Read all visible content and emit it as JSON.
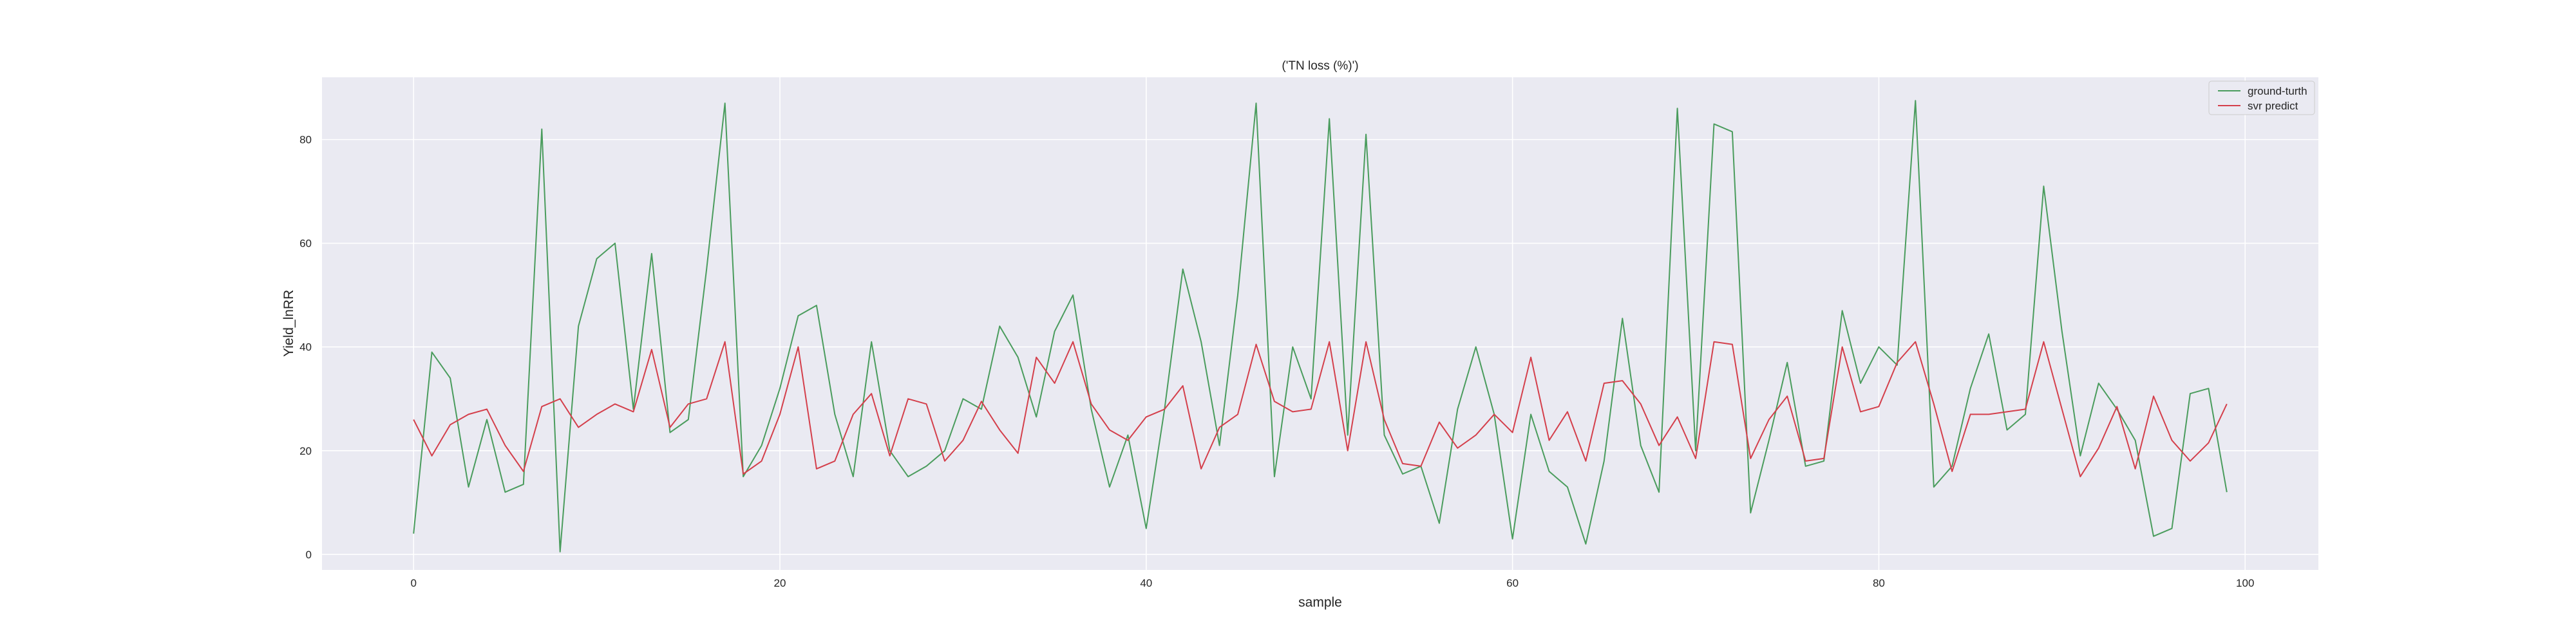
{
  "chart_data": {
    "type": "line",
    "title": "('TN loss (%)')",
    "xlabel": "sample",
    "ylabel": "Yield_lnRR",
    "xlim": [
      -5,
      104
    ],
    "ylim": [
      -3,
      92
    ],
    "x_ticks": [
      0,
      20,
      40,
      60,
      80,
      100
    ],
    "y_ticks": [
      0,
      20,
      40,
      60,
      80
    ],
    "x_tick_labels": [
      "0",
      "20",
      "40",
      "60",
      "80",
      "100"
    ],
    "y_tick_labels": [
      "0",
      "20",
      "40",
      "60",
      "80"
    ],
    "grid": true,
    "legend_position": "top-right",
    "background_color": "#eaeaf2",
    "x": [
      0,
      1,
      2,
      3,
      4,
      5,
      6,
      7,
      8,
      9,
      10,
      11,
      12,
      13,
      14,
      15,
      16,
      17,
      18,
      19,
      20,
      21,
      22,
      23,
      24,
      25,
      26,
      27,
      28,
      29,
      30,
      31,
      32,
      33,
      34,
      35,
      36,
      37,
      38,
      39,
      40,
      41,
      42,
      43,
      44,
      45,
      46,
      47,
      48,
      49,
      50,
      51,
      52,
      53,
      54,
      55,
      56,
      57,
      58,
      59,
      60,
      61,
      62,
      63,
      64,
      65,
      66,
      67,
      68,
      69,
      70,
      71,
      72,
      73,
      74,
      75,
      76,
      77,
      78,
      79,
      80,
      81,
      82,
      83,
      84,
      85,
      86,
      87,
      88,
      89,
      90,
      91,
      92,
      93,
      94,
      95,
      96,
      97,
      98,
      99
    ],
    "series": [
      {
        "name": "ground-turth",
        "color": "#4a9c5d",
        "values": [
          4,
          39,
          34,
          13,
          26,
          12,
          13.5,
          82,
          0.5,
          44,
          57,
          60,
          28,
          58,
          23.5,
          26,
          55,
          87,
          15,
          21,
          32,
          46,
          48,
          27,
          15,
          41,
          20,
          15,
          17,
          20,
          30,
          28,
          44,
          38,
          26.5,
          43,
          50,
          28,
          13,
          23,
          5,
          28,
          55,
          41,
          21,
          50,
          87,
          15,
          40,
          30,
          84,
          23,
          81,
          23,
          15.5,
          17,
          6,
          28,
          40,
          27,
          3,
          27,
          16,
          13,
          2,
          18,
          45.5,
          21,
          12,
          86,
          20,
          83,
          81.5,
          8,
          22,
          37,
          17,
          18,
          47,
          33,
          40,
          36.5,
          87.5,
          13,
          17,
          32,
          42.5,
          24,
          27,
          71,
          43,
          19,
          33,
          28,
          22,
          3.5,
          5,
          31,
          32,
          12
        ]
      },
      {
        "name": "svr predict",
        "color": "#d43f4b",
        "values": [
          26,
          19,
          25,
          27,
          28,
          21,
          16,
          28.5,
          30,
          24.5,
          27,
          29,
          27.5,
          39.5,
          24.5,
          29,
          30,
          41,
          15.5,
          18,
          27,
          40,
          16.5,
          18,
          27,
          31,
          19,
          30,
          29,
          18,
          22,
          29.5,
          24,
          19.5,
          38,
          33,
          41,
          29,
          24,
          22,
          26.5,
          28,
          32.5,
          16.5,
          24.5,
          27,
          40.5,
          29.5,
          27.5,
          28,
          41,
          20,
          41,
          26,
          17.5,
          17,
          25.5,
          20.5,
          23,
          27,
          23.5,
          38,
          22,
          27.5,
          18,
          33,
          33.5,
          29,
          21,
          26.5,
          18.5,
          41,
          40.5,
          18.5,
          26,
          30.5,
          18,
          18.5,
          40,
          27.5,
          28.5,
          37,
          41,
          29,
          16,
          27,
          27,
          27.5,
          28,
          41,
          28,
          15,
          20.5,
          28.5,
          16.5,
          30.5,
          22,
          18,
          21.5,
          29
        ]
      }
    ]
  }
}
